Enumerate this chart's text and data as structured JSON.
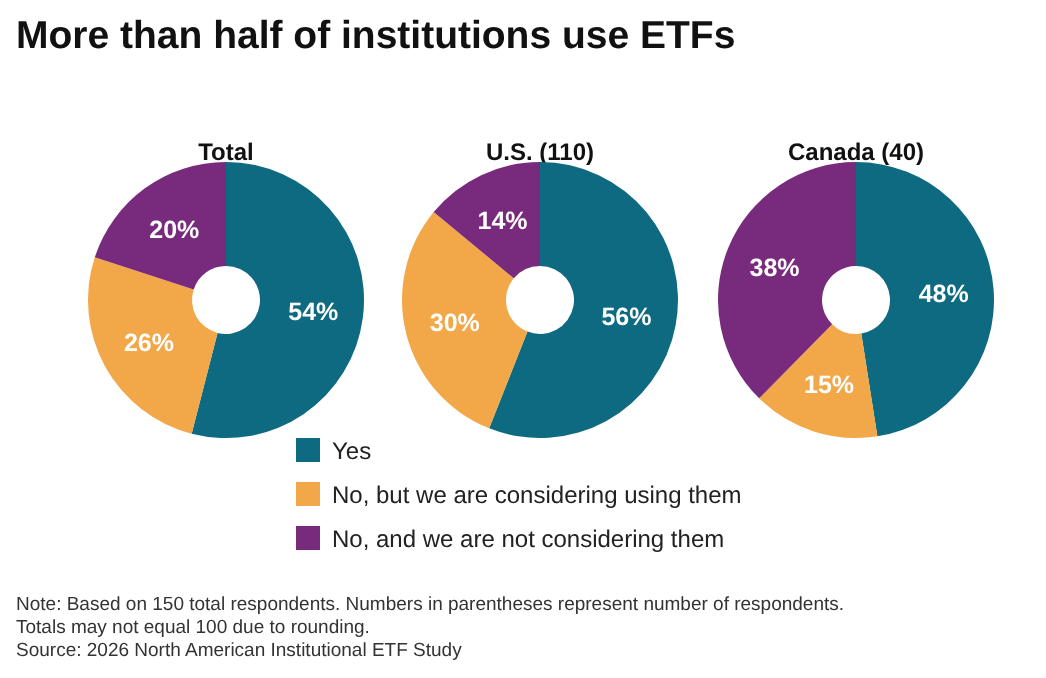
{
  "chart_data": [
    {
      "type": "donut",
      "title": "More than half of institutions use ETFs",
      "subtitle": "Total",
      "values": [
        54,
        26,
        20
      ],
      "value_labels": [
        "54%",
        "26%",
        "20%"
      ],
      "colors": [
        "#0e6a80",
        "#f2a748",
        "#782a7c"
      ],
      "annotations": [
        "Note: Based on 150 total respondents. Numbers in parentheses represent number of respondents.",
        "Totals may not equal 100 due to rounding.",
        "Source: 2026 North American Institutional ETF Study"
      ]
    },
    {
      "type": "donut",
      "subtitle": "U.S. (110)",
      "categories": [
        "Yes",
        "No, but we are considering using them",
        "No, and we are not considering them"
      ],
      "values": [
        56,
        30,
        14
      ],
      "value_labels": [
        "56%",
        "30%",
        "14%"
      ],
      "colors": [
        "#0e6a80",
        "#f2a748",
        "#782a7c"
      ],
      "legend": "bottom"
    },
    {
      "type": "donut",
      "subtitle": "Canada (40)",
      "values": [
        48,
        15,
        38
      ],
      "value_labels": [
        "48%",
        "15%",
        "38%"
      ],
      "colors": [
        "#0e6a80",
        "#f2a748",
        "#782a7c"
      ]
    }
  ]
}
